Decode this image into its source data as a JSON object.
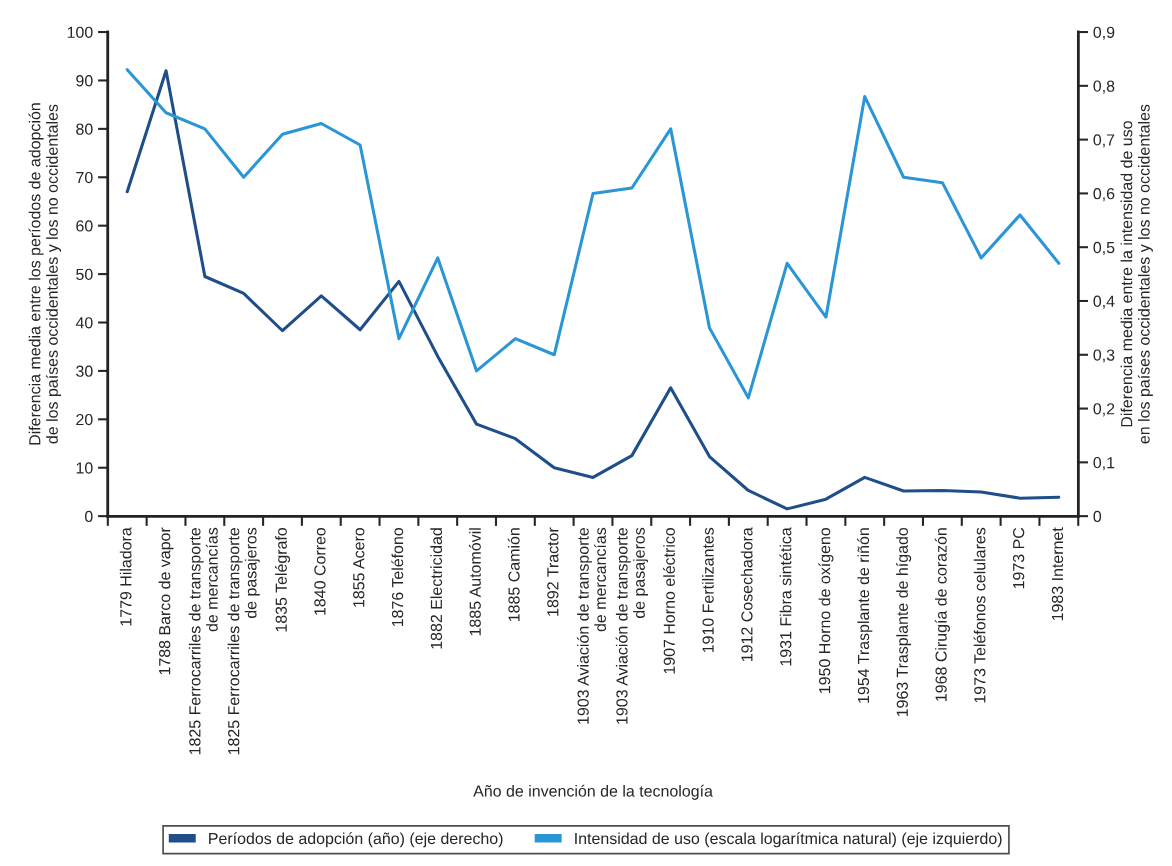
{
  "chart_data": {
    "type": "line",
    "xlabel": "Año de invención de la tecnología",
    "ylabel": "Diferencia media entre los períodos de adopción\nde los países occidentales y los no occidentales",
    "y2label": "Diferencia media entre la intensidad de uso\nen los países occidentales y los no occidentales",
    "categories": [
      "1779 Hiladora",
      "1788 Barco de vapor",
      "1825 Ferrocarriles de transporte\nde mercancías",
      "1825 Ferrocarriles de transporte\nde pasajeros",
      "1835 Telégrafo",
      "1840 Correo",
      "1855 Acero",
      "1876 Teléfono",
      "1882 Electricidad",
      "1885 Automóvil",
      "1885 Camión",
      "1892 Tractor",
      "1903 Aviación de transporte\nde mercancías",
      "1903 Aviación de transporte\nde pasajeros",
      "1907 Horno eléctrico",
      "1910 Fertilizantes",
      "1912 Cosechadora",
      "1931 Fibra sintética",
      "1950 Horno de oxígeno",
      "1954 Trasplante de riñón",
      "1963 Trasplante de hígado",
      "1968 Cirugía de corazón",
      "1973 Teléfonos celulares",
      "1973 PC",
      "1983 Internet"
    ],
    "series": [
      {
        "name": "Períodos de adopción (año) (eje derecho)",
        "color": "#1f4e89",
        "axis": "y",
        "values": [
          67,
          92,
          49.5,
          46,
          38.3,
          45.5,
          38.5,
          48.5,
          33,
          19,
          16,
          10,
          8,
          12.5,
          26.5,
          12.3,
          5.3,
          1.5,
          3.5,
          8,
          5.2,
          5.3,
          5,
          3.7,
          3.9
        ]
      },
      {
        "name": "Intensidad de uso (escala logarítmica natural) (eje izquierdo)",
        "color": "#2a96d6",
        "axis": "y2",
        "values": [
          0.83,
          0.75,
          0.72,
          0.63,
          0.71,
          0.73,
          0.69,
          0.33,
          0.48,
          0.27,
          0.33,
          0.3,
          0.6,
          0.61,
          0.72,
          0.35,
          0.22,
          0.47,
          0.37,
          0.78,
          0.63,
          0.62,
          0.48,
          0.56,
          0.47
        ]
      }
    ],
    "ylim": [
      0,
      100
    ],
    "yticks": [
      0,
      10,
      20,
      30,
      40,
      50,
      60,
      70,
      80,
      90,
      100
    ],
    "y2lim": [
      0,
      0.9
    ],
    "y2ticks": [
      {
        "value": 0,
        "label": "0"
      },
      {
        "value": 0.1,
        "label": "0,1"
      },
      {
        "value": 0.2,
        "label": "0,2"
      },
      {
        "value": 0.3,
        "label": "0,3"
      },
      {
        "value": 0.4,
        "label": "0,4"
      },
      {
        "value": 0.5,
        "label": "0,5"
      },
      {
        "value": 0.6,
        "label": "0,6"
      },
      {
        "value": 0.7,
        "label": "0,7"
      },
      {
        "value": 0.8,
        "label": "0,8"
      },
      {
        "value": 0.9,
        "label": "0,9"
      }
    ],
    "grid": false,
    "legend": "bottom",
    "marker": "none",
    "line_style": "solid"
  }
}
